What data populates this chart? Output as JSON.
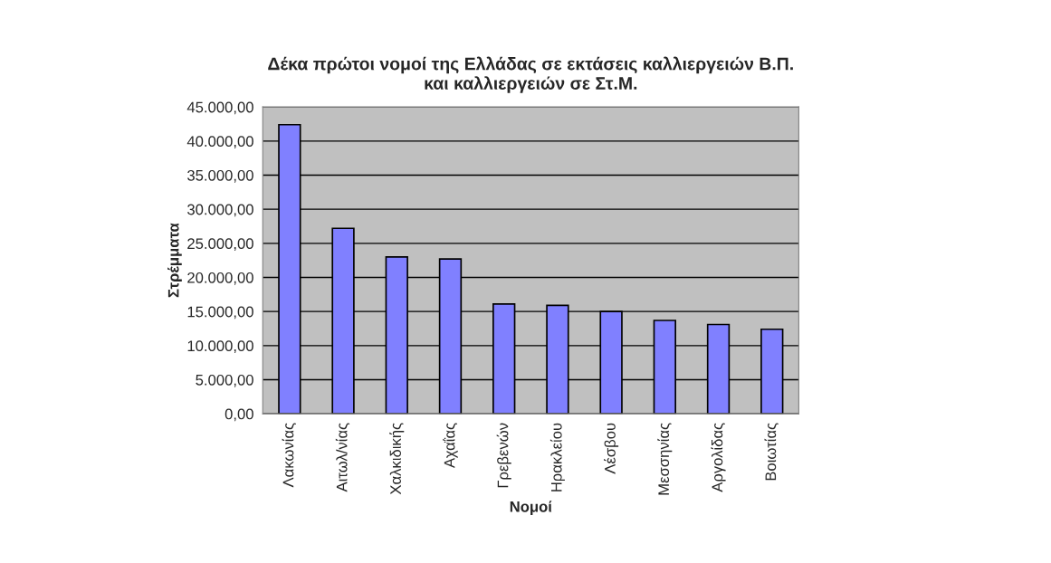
{
  "chart_data": {
    "type": "bar",
    "title": "Δέκα πρώτοι νομοί της Ελλάδας σε εκτάσεις καλλιεργειών Β.Π.\nκαι καλλιεργειών σε Στ.Μ.",
    "xlabel": "Νομοί",
    "ylabel": "Στρέμματα",
    "categories": [
      "Λακωνίας",
      "Αιτωλ/νίας",
      "Χαλκιδικής",
      "Αχαΐας",
      "Γρεβενών",
      "Ηρακλείου",
      "Λέσβου",
      "Μεσσηνίας",
      "Αργολίδας",
      "Βοιωτίας"
    ],
    "values": [
      42400,
      27200,
      23000,
      22700,
      16100,
      15900,
      15000,
      13700,
      13100,
      12400
    ],
    "color": "#8080ff",
    "ylim": [
      0,
      45000
    ],
    "yticks": [
      {
        "value": 0,
        "label": "0,00"
      },
      {
        "value": 5000,
        "label": "5.000,00"
      },
      {
        "value": 10000,
        "label": "10.000,00"
      },
      {
        "value": 15000,
        "label": "15.000,00"
      },
      {
        "value": 20000,
        "label": "20.000,00"
      },
      {
        "value": 25000,
        "label": "25.000,00"
      },
      {
        "value": 30000,
        "label": "30.000,00"
      },
      {
        "value": 35000,
        "label": "35.000,00"
      },
      {
        "value": 40000,
        "label": "40.000,00"
      },
      {
        "value": 45000,
        "label": "45.000,00"
      }
    ],
    "grid": "y",
    "legend": false
  }
}
